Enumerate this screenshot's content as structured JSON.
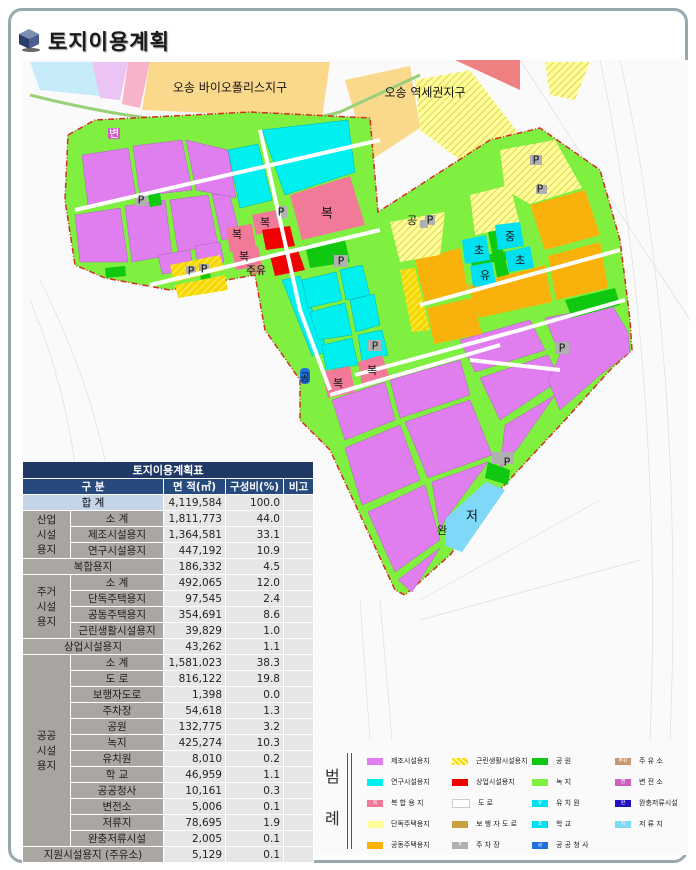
{
  "page_title": "토지이용계획",
  "map_labels": {
    "bio": "오송 바이오폴리스지구",
    "station": "오송 역세권지구",
    "byeon": "변",
    "p": "P",
    "bok": "복",
    "juyu": "주유",
    "gong": "공",
    "cho": "초",
    "jung": "중",
    "yu": "유",
    "jeo": "저",
    "wan": "완"
  },
  "table": {
    "caption": "토지이용계획표",
    "headers": [
      "구 분",
      "면 적(㎡)",
      "구성비(%)",
      "비고"
    ],
    "total": {
      "label": "합 계",
      "area": "4,119,584",
      "ratio": "100.0"
    },
    "industrial": {
      "group": "산업 시설 용지",
      "rows": [
        {
          "label": "소 계",
          "area": "1,811,773",
          "ratio": "44.0"
        },
        {
          "label": "제조시설용지",
          "area": "1,364,581",
          "ratio": "33.1"
        },
        {
          "label": "연구시설용지",
          "area": "447,192",
          "ratio": "10.9"
        }
      ]
    },
    "mixed": {
      "label": "복합용지",
      "area": "186,332",
      "ratio": "4.5"
    },
    "residential": {
      "group": "주거 시설 용지",
      "rows": [
        {
          "label": "소 계",
          "area": "492,065",
          "ratio": "12.0"
        },
        {
          "label": "단독주택용지",
          "area": "97,545",
          "ratio": "2.4"
        },
        {
          "label": "공동주택용지",
          "area": "354,691",
          "ratio": "8.6"
        },
        {
          "label": "근린생활시설용지",
          "area": "39,829",
          "ratio": "1.0"
        }
      ]
    },
    "commercial": {
      "label": "상업시설용지",
      "area": "43,262",
      "ratio": "1.1"
    },
    "public": {
      "group": "공공 시설 용지",
      "rows": [
        {
          "label": "소 계",
          "area": "1,581,023",
          "ratio": "38.3"
        },
        {
          "label": "도 로",
          "area": "816,122",
          "ratio": "19.8"
        },
        {
          "label": "보행자도로",
          "area": "1,398",
          "ratio": "0.0"
        },
        {
          "label": "주차장",
          "area": "54,618",
          "ratio": "1.3"
        },
        {
          "label": "공원",
          "area": "132,775",
          "ratio": "3.2"
        },
        {
          "label": "녹지",
          "area": "425,274",
          "ratio": "10.3"
        },
        {
          "label": "유치원",
          "area": "8,010",
          "ratio": "0.2"
        },
        {
          "label": "학 교",
          "area": "46,959",
          "ratio": "1.1"
        },
        {
          "label": "공공청사",
          "area": "10,161",
          "ratio": "0.3"
        },
        {
          "label": "변전소",
          "area": "5,006",
          "ratio": "0.1"
        },
        {
          "label": "저류지",
          "area": "78,695",
          "ratio": "1.9"
        },
        {
          "label": "완충저류시설",
          "area": "2,005",
          "ratio": "0.1"
        }
      ]
    },
    "support": {
      "label": "지원시설용지 (주유소)",
      "area": "5,129",
      "ratio": "0.1"
    }
  },
  "legend": {
    "title_top": "범",
    "title_bottom": "례",
    "items": [
      {
        "label": "제조시설용지",
        "color": "#e07ef0",
        "mark": ""
      },
      {
        "label": "연구시설용지",
        "color": "#00f0f0",
        "mark": ""
      },
      {
        "label": "복 합 용 지",
        "color": "#f07a98",
        "mark": "복"
      },
      {
        "label": "단독주택용지",
        "color": "#ffff99",
        "mark": ""
      },
      {
        "label": "공동주택용지",
        "color": "#f9b20c",
        "mark": ""
      },
      {
        "label": "근린생활시설용지",
        "color": "#f5d800",
        "mark": ""
      },
      {
        "label": "상업시설용지",
        "color": "#f00000",
        "mark": ""
      },
      {
        "label": "도 로",
        "color": "#ffffff",
        "mark": ""
      },
      {
        "label": "보 행 자 도 로",
        "color": "#c8a040",
        "mark": ""
      },
      {
        "label": "주 차 장",
        "color": "#b0b0b0",
        "mark": "P"
      },
      {
        "label": "공 원",
        "color": "#10c810",
        "mark": ""
      },
      {
        "label": "녹 지",
        "color": "#80f040",
        "mark": ""
      },
      {
        "label": "유 치 원",
        "color": "#00e0f0",
        "mark": "유"
      },
      {
        "label": "학 교",
        "color": "#00e0f0",
        "mark": "초"
      },
      {
        "label": "공 공 청 사",
        "color": "#2070e0",
        "mark": "공"
      },
      {
        "label": "주 유 소",
        "color": "#c89870",
        "mark": "주유"
      },
      {
        "label": "변 전 소",
        "color": "#d060c0",
        "mark": "변"
      },
      {
        "label": "완충저류시설",
        "color": "#2010c0",
        "mark": "완"
      },
      {
        "label": "저 류 지",
        "color": "#80d8f8",
        "mark": "저"
      }
    ]
  },
  "colors": {
    "manufacturing": "#e07ef0",
    "research": "#00f0f0",
    "mixed": "#f07a98",
    "apartment": "#f9b20c",
    "commercial": "#f00000",
    "park": "#10c810",
    "green": "#80f040",
    "frame": "#97a9ad",
    "table_header": "#1f3864"
  }
}
